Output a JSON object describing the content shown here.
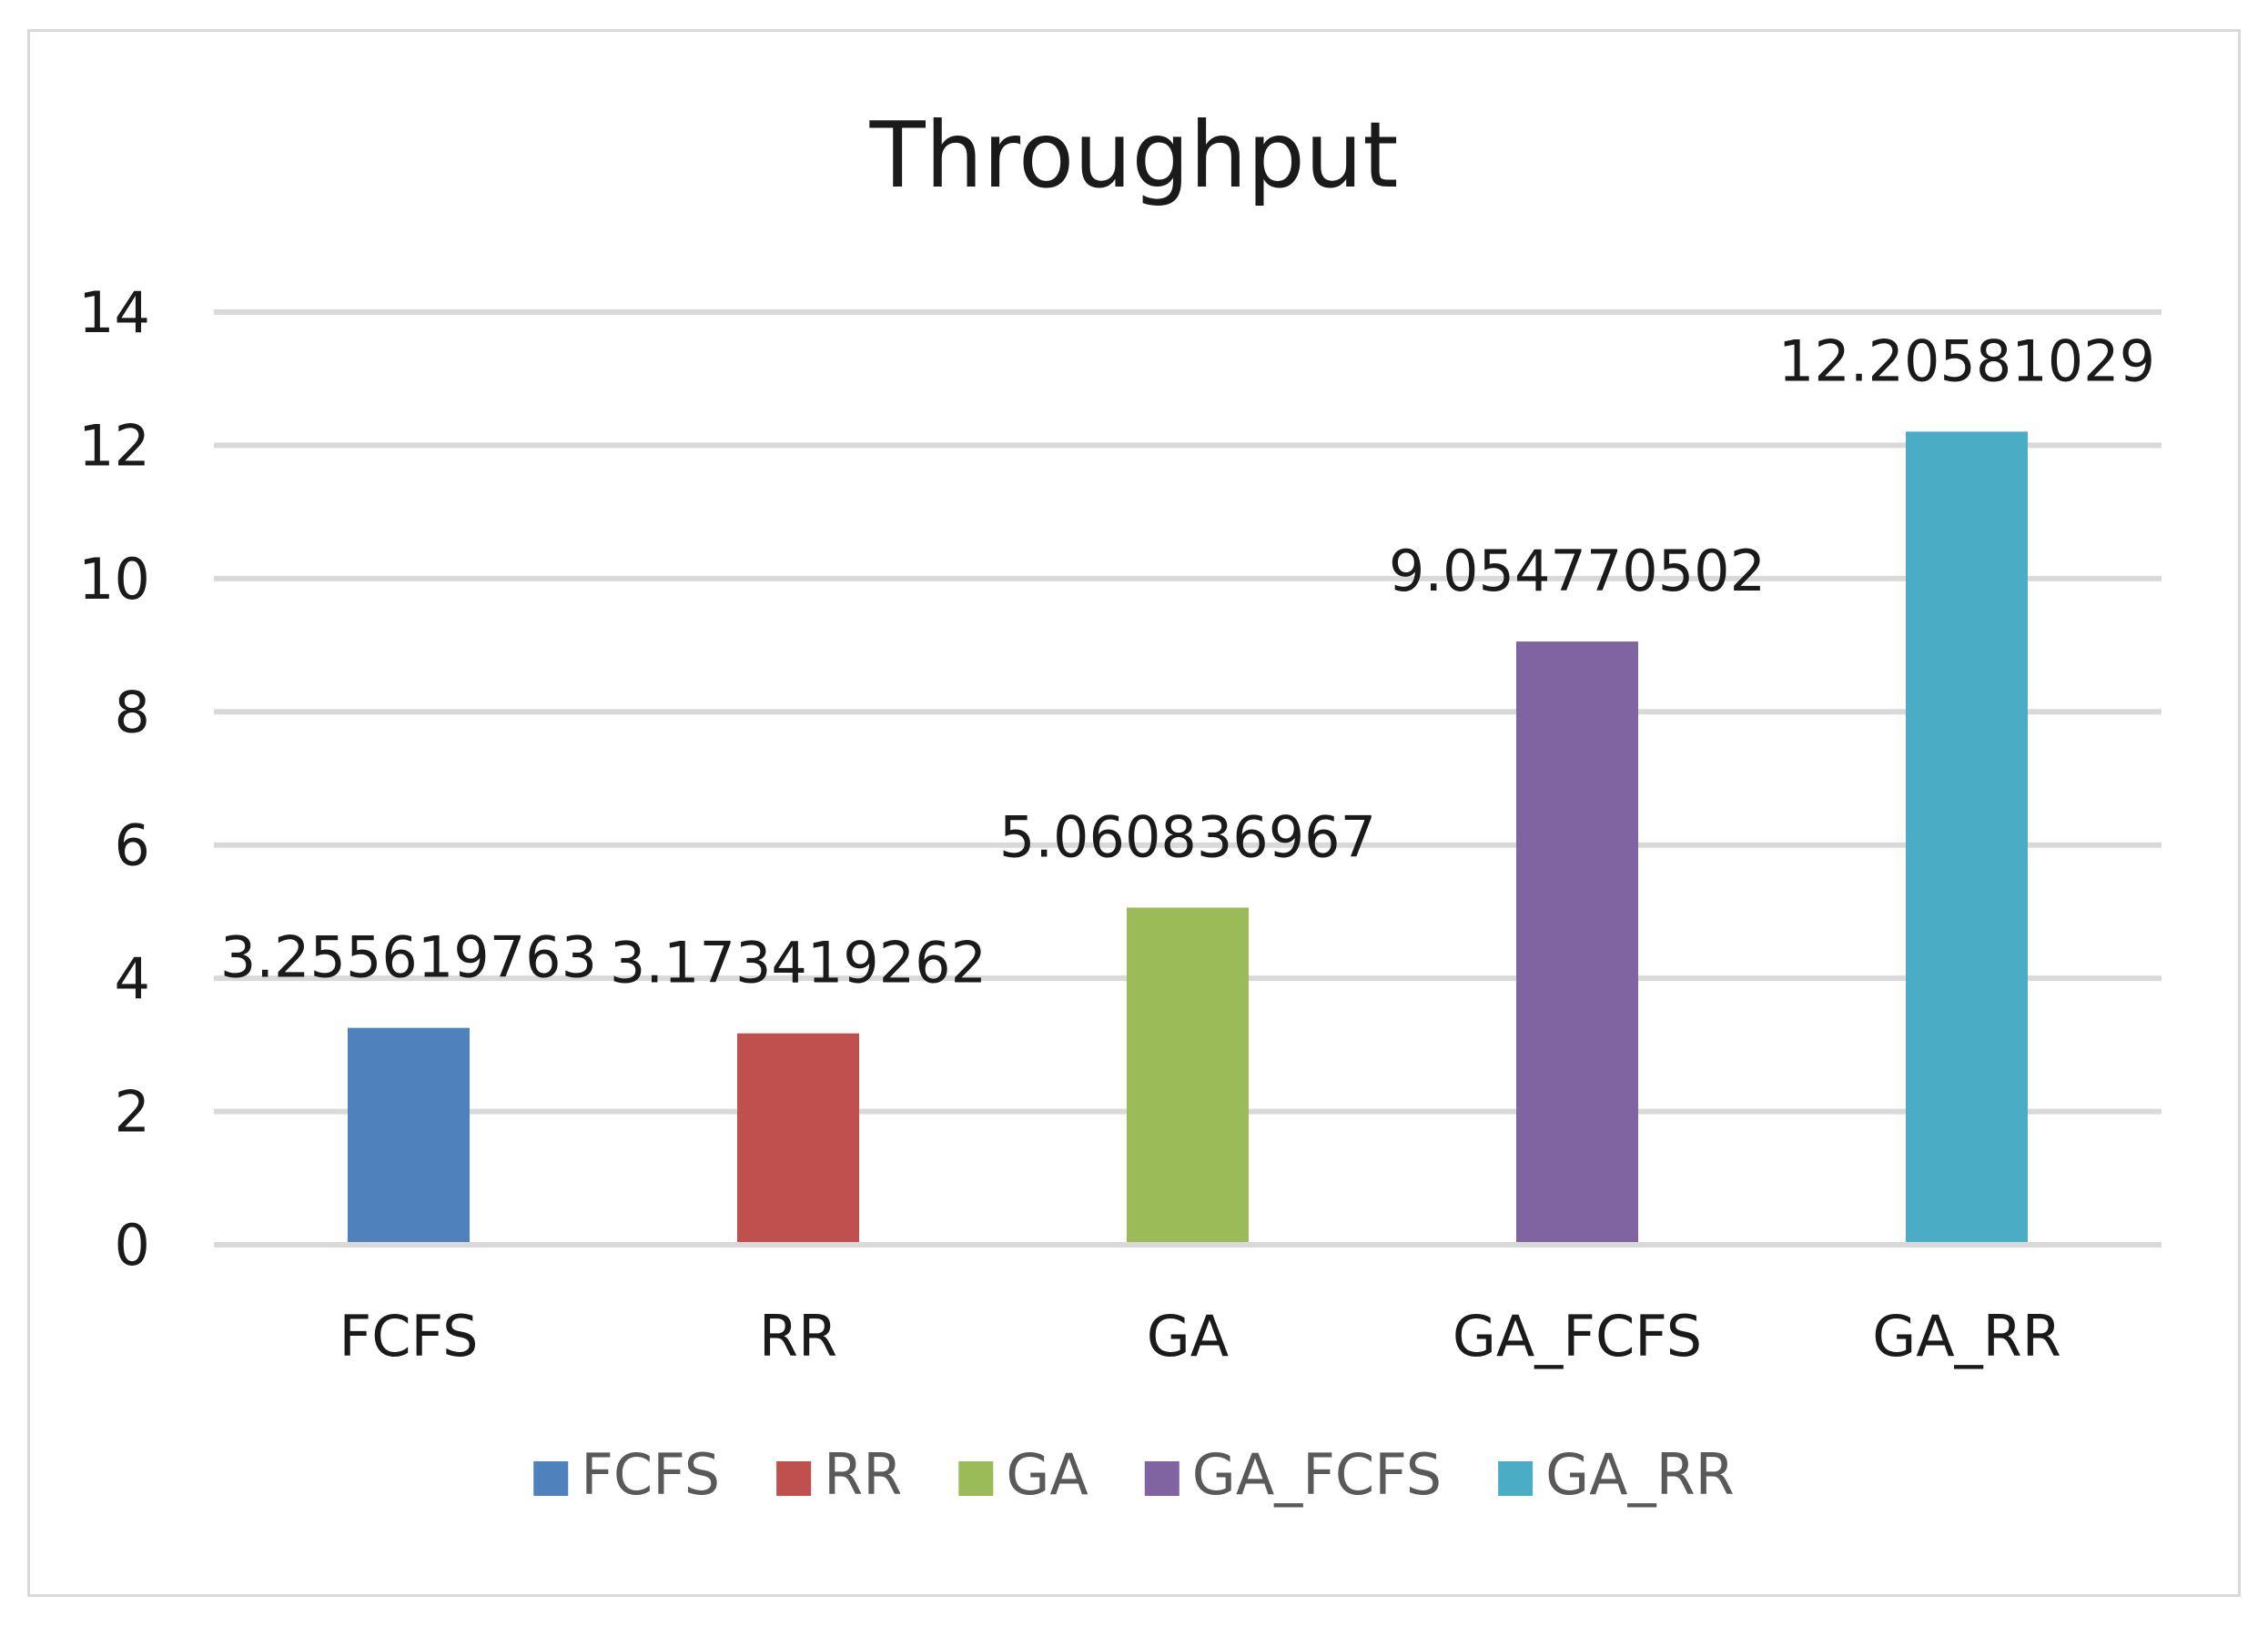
{
  "chart_data": {
    "type": "bar",
    "title": "Throughput",
    "categories": [
      "FCFS",
      "RR",
      "GA",
      "GA_FCFS",
      "GA_RR"
    ],
    "values": [
      3.255619763,
      3.173419262,
      5.060836967,
      9.054770502,
      12.20581029
    ],
    "value_labels": [
      "3.255619763",
      "3.173419262",
      "5.060836967",
      "9.054770502",
      "12.20581029"
    ],
    "colors": [
      "#4f81bd",
      "#c0504d",
      "#9bbb59",
      "#8064a2",
      "#4bacc6"
    ],
    "yticks": [
      0,
      2,
      4,
      6,
      8,
      10,
      12,
      14
    ],
    "ylim": [
      0,
      14
    ],
    "xlabel": "",
    "ylabel": "",
    "grid": true,
    "legend": {
      "position": "bottom",
      "entries": [
        "FCFS",
        "RR",
        "GA",
        "GA_FCFS",
        "GA_RR"
      ]
    }
  }
}
